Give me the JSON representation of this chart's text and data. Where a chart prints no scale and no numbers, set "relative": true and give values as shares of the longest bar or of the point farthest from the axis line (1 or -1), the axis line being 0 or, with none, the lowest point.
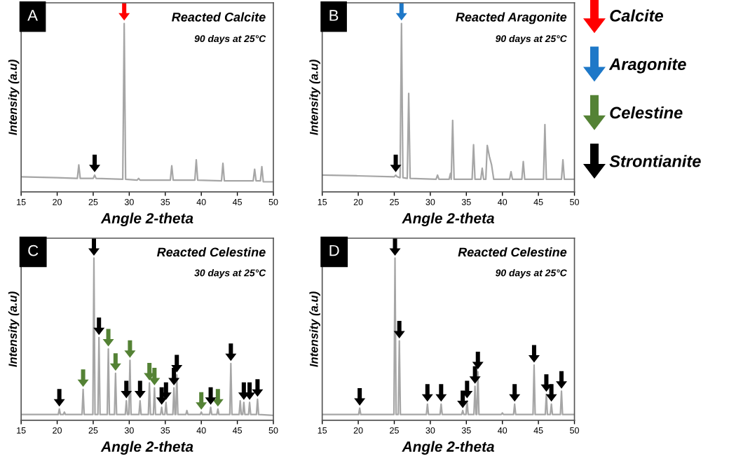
{
  "chart_data": [
    {
      "type": "line",
      "relative": true,
      "title": "Reacted Calcite",
      "subtitle": "90 days at 25°C",
      "xlabel": "Angle 2-theta",
      "ylabel": "Intensity (a.u)",
      "annotations": [
        "A"
      ],
      "xlim": [
        15,
        50
      ],
      "xticks": [
        15,
        20,
        25,
        30,
        35,
        40,
        45,
        50
      ],
      "legend": "right",
      "series": [
        {
          "color": "#a6a6a6",
          "x": [
            15,
            20,
            22.8,
            23.0,
            23.2,
            25.0,
            25.2,
            25.4,
            29.1,
            29.3,
            29.5,
            31.1,
            31.3,
            31.5,
            35.7,
            35.9,
            36.1,
            39.1,
            39.3,
            39.5,
            42.8,
            43.0,
            43.2,
            47.2,
            47.4,
            47.6,
            48.2,
            48.4,
            48.6,
            50
          ],
          "values": [
            0.084,
            0.079,
            0.075,
            0.15,
            0.075,
            0.075,
            0.093,
            0.075,
            0.07,
            0.935,
            0.07,
            0.065,
            0.075,
            0.065,
            0.065,
            0.145,
            0.065,
            0.065,
            0.178,
            0.065,
            0.061,
            0.159,
            0.061,
            0.061,
            0.126,
            0.061,
            0.061,
            0.14,
            0.056,
            0.056
          ]
        },
        {
          "type": "scatter",
          "name": "Calcite",
          "color": "#ff0000",
          "x": [
            29.3
          ],
          "values": [
            1.0
          ]
        },
        {
          "type": "scatter",
          "name": "Strontianite",
          "color": "#000000",
          "x": [
            25.2
          ],
          "values": [
            0.158
          ]
        }
      ]
    },
    {
      "type": "line",
      "relative": true,
      "title": "Reacted Aragonite",
      "subtitle": "90 days at 25°C",
      "xlabel": "Angle 2-theta",
      "ylabel": "Intensity (a.u)",
      "annotations": [
        "B"
      ],
      "xlim": [
        15,
        50
      ],
      "xticks": [
        15,
        20,
        25,
        30,
        35,
        40,
        45,
        50
      ],
      "legend": "right",
      "series": [
        {
          "color": "#a6a6a6",
          "x": [
            15,
            20,
            25,
            25.2,
            25.4,
            25.8,
            26.0,
            26.2,
            26.8,
            27.0,
            27.2,
            30.8,
            31.0,
            31.2,
            32.6,
            32.8,
            32.9,
            33.1,
            33.3,
            35.8,
            36.0,
            36.2,
            37.0,
            37.2,
            37.4,
            37.7,
            37.9,
            38.2,
            38.5,
            38.8,
            41.0,
            41.2,
            41.4,
            42.7,
            42.9,
            43.1,
            45.7,
            45.9,
            46.1,
            48.2,
            48.4,
            48.6,
            50
          ],
          "values": [
            0.093,
            0.089,
            0.084,
            0.093,
            0.084,
            0.079,
            0.935,
            0.079,
            0.075,
            0.547,
            0.075,
            0.07,
            0.093,
            0.07,
            0.07,
            0.103,
            0.07,
            0.397,
            0.07,
            0.07,
            0.262,
            0.07,
            0.07,
            0.131,
            0.07,
            0.07,
            0.258,
            0.196,
            0.15,
            0.07,
            0.07,
            0.112,
            0.07,
            0.07,
            0.168,
            0.07,
            0.07,
            0.374,
            0.07,
            0.07,
            0.178,
            0.07,
            0.07
          ]
        },
        {
          "type": "scatter",
          "name": "Aragonite",
          "color": "#1e78c8",
          "x": [
            26.0
          ],
          "values": [
            1.0
          ]
        },
        {
          "type": "scatter",
          "name": "Strontianite",
          "color": "#000000",
          "x": [
            25.2
          ],
          "values": [
            0.158
          ]
        }
      ]
    },
    {
      "type": "line",
      "relative": true,
      "title": "Reacted Celestine",
      "subtitle": "30 days at 25°C",
      "xlabel": "Angle 2-theta",
      "ylabel": "Intensity (a.u)",
      "annotations": [
        "C"
      ],
      "xlim": [
        15,
        50
      ],
      "xticks": [
        15,
        20,
        25,
        30,
        35,
        40,
        45,
        50
      ],
      "legend": "right",
      "series": [
        {
          "color": "#a6a6a6",
          "x": [
            15,
            20.15,
            20.3,
            20.45,
            20.85,
            21.0,
            21.15,
            23.45,
            23.6,
            23.75,
            24.95,
            25.1,
            25.25,
            25.65,
            25.8,
            25.95,
            26.95,
            27.1,
            27.25,
            27.95,
            28.1,
            28.25,
            29.45,
            29.6,
            29.75,
            29.95,
            30.1,
            30.25,
            31.35,
            31.5,
            31.65,
            32.65,
            32.8,
            32.95,
            33.35,
            33.5,
            33.65,
            34.35,
            34.5,
            34.65,
            34.95,
            35.1,
            35.25,
            36.05,
            36.2,
            36.35,
            36.45,
            36.6,
            36.75,
            37.85,
            38.0,
            38.15,
            39.85,
            40.0,
            40.15,
            41.15,
            41.3,
            41.45,
            42.15,
            42.3,
            42.45,
            43.95,
            44.1,
            44.25,
            45.25,
            45.4,
            45.55,
            45.75,
            45.9,
            46.05,
            46.55,
            46.7,
            46.85,
            47.65,
            47.8,
            47.95,
            50
          ],
          "values": [
            0.033,
            0.033,
            0.065,
            0.033,
            0.033,
            0.047,
            0.033,
            0.033,
            0.178,
            0.033,
            0.033,
            0.935,
            0.033,
            0.033,
            0.477,
            0.033,
            0.033,
            0.411,
            0.033,
            0.033,
            0.271,
            0.033,
            0.033,
            0.112,
            0.033,
            0.033,
            0.346,
            0.033,
            0.033,
            0.112,
            0.033,
            0.033,
            0.215,
            0.033,
            0.033,
            0.187,
            0.033,
            0.033,
            0.075,
            0.033,
            0.033,
            0.103,
            0.033,
            0.033,
            0.187,
            0.033,
            0.033,
            0.262,
            0.033,
            0.033,
            0.056,
            0.033,
            0.033,
            0.047,
            0.033,
            0.033,
            0.075,
            0.033,
            0.033,
            0.065,
            0.033,
            0.033,
            0.327,
            0.033,
            0.033,
            0.112,
            0.033,
            0.033,
            0.103,
            0.033,
            0.033,
            0.103,
            0.033,
            0.033,
            0.121,
            0.033,
            0.028
          ]
        },
        {
          "type": "scatter",
          "name": "Celestine",
          "color": "#548235",
          "x": [
            23.6,
            27.1,
            28.1,
            30.1,
            32.8,
            33.5,
            40.0,
            42.3
          ],
          "values": [
            0.243,
            0.476,
            0.336,
            0.411,
            0.28,
            0.252,
            0.112,
            0.13
          ]
        },
        {
          "type": "scatter",
          "name": "Strontianite",
          "color": "#000000",
          "x": [
            20.3,
            25.1,
            25.8,
            29.6,
            31.5,
            34.5,
            35.1,
            36.2,
            36.6,
            41.3,
            44.1,
            45.9,
            46.7,
            47.8
          ],
          "values": [
            0.13,
            1.0,
            0.542,
            0.177,
            0.177,
            0.14,
            0.168,
            0.252,
            0.327,
            0.14,
            0.392,
            0.168,
            0.168,
            0.186
          ]
        }
      ]
    },
    {
      "type": "line",
      "relative": true,
      "title": "Reacted Celestine",
      "subtitle": "90 days at 25°C",
      "xlabel": "Angle 2-theta",
      "ylabel": "Intensity (a.u)",
      "annotations": [
        "D"
      ],
      "xlim": [
        15,
        50
      ],
      "xticks": [
        15,
        20,
        25,
        30,
        35,
        40,
        45,
        50
      ],
      "legend": "right",
      "series": [
        {
          "color": "#a6a6a6",
          "x": [
            15,
            20.05,
            20.2,
            20.35,
            24.95,
            25.1,
            25.25,
            25.55,
            25.7,
            25.85,
            29.45,
            29.6,
            29.75,
            31.35,
            31.5,
            31.65,
            34.35,
            34.5,
            34.65,
            34.95,
            35.1,
            35.25,
            36.05,
            36.2,
            36.35,
            36.45,
            36.6,
            36.75,
            39.85,
            40.0,
            40.15,
            41.55,
            41.7,
            41.85,
            44.25,
            44.4,
            44.55,
            45.95,
            46.1,
            46.25,
            46.65,
            46.8,
            46.95,
            48.05,
            48.2,
            48.35,
            50
          ],
          "values": [
            0.033,
            0.033,
            0.07,
            0.033,
            0.033,
            0.935,
            0.033,
            0.033,
            0.458,
            0.033,
            0.033,
            0.093,
            0.033,
            0.033,
            0.093,
            0.033,
            0.033,
            0.056,
            0.033,
            0.033,
            0.112,
            0.033,
            0.033,
            0.196,
            0.033,
            0.033,
            0.28,
            0.033,
            0.033,
            0.042,
            0.033,
            0.033,
            0.093,
            0.033,
            0.033,
            0.318,
            0.033,
            0.033,
            0.15,
            0.033,
            0.033,
            0.093,
            0.033,
            0.033,
            0.168,
            0.033,
            0.033
          ]
        },
        {
          "type": "scatter",
          "name": "Strontianite",
          "color": "#000000",
          "x": [
            20.2,
            25.1,
            25.7,
            29.6,
            31.5,
            34.5,
            35.1,
            36.2,
            36.6,
            41.7,
            44.4,
            46.1,
            46.8,
            48.2
          ],
          "values": [
            0.135,
            1.0,
            0.523,
            0.158,
            0.158,
            0.121,
            0.177,
            0.261,
            0.345,
            0.158,
            0.383,
            0.215,
            0.158,
            0.233
          ]
        }
      ]
    }
  ]
}
